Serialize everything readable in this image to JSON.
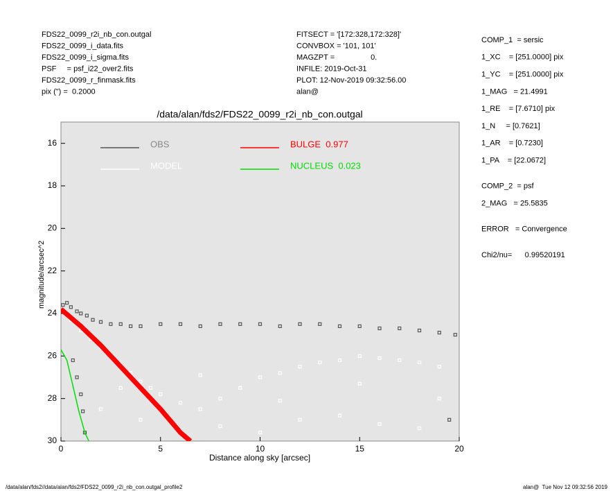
{
  "header": {
    "left": [
      "FDS22_0099_r2i_nb_con.outgal",
      "FDS22_0099_i_data.fits",
      "FDS22_0099_i_sigma.fits",
      "PSF     = psf_i22_over2.fits",
      "FDS22_0099_r_finmask.fits",
      "pix (\") =  0.2000"
    ],
    "middle": [
      "FITSECT = '[172:328,172:328]'",
      "CONVBOX = '101, 101'",
      "MAGZPT =                 0.",
      "INFILE: 2019-Oct-31",
      "PLOT: 12-Nov-2019 09:32:56.00",
      "alan@"
    ],
    "right": [
      [
        "COMP_1  = sersic",
        "1_XC    = [251.0000] pix",
        "1_YC    = [251.0000] pix",
        "1_MAG   = 21.4991",
        "1_RE    = [7.6710] pix",
        "1_N     = [0.7621]",
        "1_AR    = [0.7230]",
        "1_PA    = [22.0672]"
      ],
      [
        "COMP_2  = psf",
        "2_MAG   = 25.5835"
      ],
      [
        "ERROR   = Convergence"
      ],
      [
        "Chi2/nu=      0.99520191"
      ]
    ]
  },
  "footer": {
    "left": "/data/alan/fds2//data/alan/fds2/FDS22_0099_r2i_nb_con.outgal_profile2",
    "right": "alan@  Tue Nov 12 09:32:56 2019"
  },
  "chart_data": {
    "type": "scatter",
    "title": "/data/alan/fds2/FDS22_0099_r2i_nb_con.outgal",
    "x_label": "Distance along sky [arcsec]",
    "y_label": "magnitude/arcsec^2",
    "xlim": [
      0,
      20
    ],
    "ylim": [
      30,
      15
    ],
    "xticks": [
      0,
      5,
      10,
      15,
      20
    ],
    "yticks": [
      16,
      18,
      20,
      22,
      24,
      26,
      28,
      30
    ],
    "background": "#e5e5e5",
    "series": [
      {
        "name": "OBS",
        "color": "#555555",
        "style": "points",
        "x": [
          0.1,
          0.3,
          0.5,
          0.8,
          1.0,
          1.3,
          1.6,
          2.0,
          2.5,
          3.0,
          3.5,
          4.0,
          5.0,
          6.0,
          7.0,
          8.0,
          9.0,
          10.0,
          11.0,
          12.0,
          13.0,
          14.0,
          15.0,
          16.0,
          17.0,
          18.0,
          19.0,
          19.8,
          0.6,
          0.8,
          1.0,
          1.1,
          1.2,
          19.5
        ],
        "values": [
          23.6,
          23.5,
          23.7,
          23.9,
          24.0,
          24.1,
          24.3,
          24.4,
          24.5,
          24.5,
          24.6,
          24.6,
          24.5,
          24.5,
          24.6,
          24.5,
          24.5,
          24.5,
          24.6,
          24.5,
          24.5,
          24.6,
          24.6,
          24.7,
          24.7,
          24.8,
          24.9,
          25.0,
          26.2,
          27.0,
          27.8,
          28.6,
          29.6,
          29.0
        ]
      },
      {
        "name": "MODEL",
        "color": "#ffffff",
        "style": "points",
        "x": [
          0.5,
          1.0,
          1.5,
          2.0,
          2.5,
          3.0,
          3.5,
          4.0,
          4.5,
          5.0,
          6.0,
          7.0,
          8.0,
          9.0,
          10.0,
          11.0,
          12.0,
          13.0,
          14.0,
          15.0,
          16.0,
          17.0,
          18.0,
          19.0,
          2.0,
          4.0,
          6.0,
          8.0,
          10.0,
          12.0,
          14.0,
          16.0,
          18.0,
          3.0,
          7.0,
          11.0,
          15.0,
          19.0
        ],
        "values": [
          24.3,
          24.8,
          25.2,
          25.6,
          26.0,
          26.4,
          26.8,
          27.2,
          27.5,
          27.8,
          28.2,
          28.5,
          28.0,
          27.5,
          27.0,
          26.8,
          26.5,
          26.3,
          26.2,
          26.0,
          26.1,
          26.2,
          26.3,
          26.5,
          28.5,
          29.0,
          29.5,
          29.3,
          29.6,
          29.0,
          28.8,
          29.2,
          29.4,
          27.5,
          26.9,
          28.1,
          27.3,
          28.0
        ]
      },
      {
        "name": "BULGE  0.977",
        "color": "#ff0000",
        "style": "line",
        "x": [
          0,
          1,
          2,
          3,
          4,
          5,
          6,
          6.5
        ],
        "values": [
          23.8,
          24.6,
          25.5,
          26.5,
          27.5,
          28.5,
          29.6,
          30
        ]
      },
      {
        "name": "NUCLEUS  0.023",
        "color": "#00dd00",
        "style": "line",
        "x": [
          0,
          0.3,
          0.6,
          0.9,
          1.2,
          1.4
        ],
        "values": [
          25.7,
          26.2,
          27.4,
          28.6,
          29.6,
          30
        ]
      }
    ]
  }
}
